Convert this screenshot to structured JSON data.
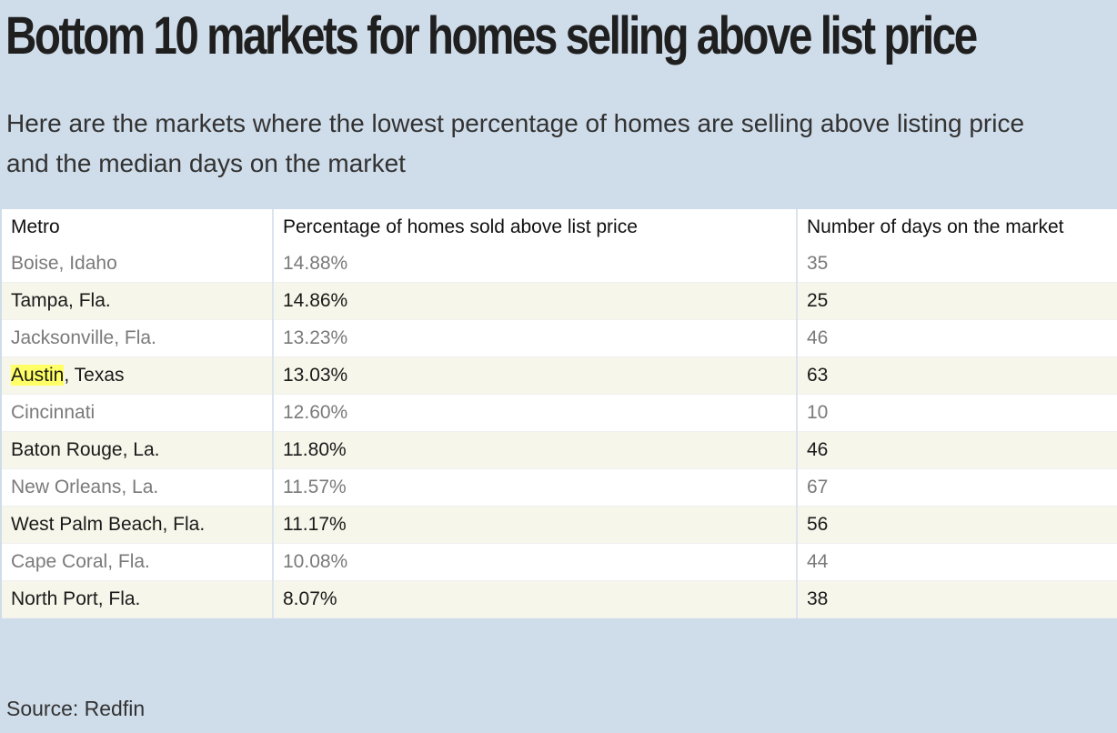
{
  "chart_data": {
    "type": "table",
    "title": "Bottom 10 markets for homes selling above list price",
    "subtitle": "Here are the markets where the lowest percentage of homes are selling above listing price and the median days on the market",
    "columns": [
      "Metro",
      "Percentage of homes sold above list price",
      "Number of days on the market"
    ],
    "rows": [
      {
        "metro": "Boise, Idaho",
        "pct": "14.88%",
        "days": "35"
      },
      {
        "metro": "Tampa, Fla.",
        "pct": "14.86%",
        "days": "25"
      },
      {
        "metro": "Jacksonville, Fla.",
        "pct": "13.23%",
        "days": "46"
      },
      {
        "metro_highlight": "Austin",
        "metro_rest": ", Texas",
        "pct": "13.03%",
        "days": "63"
      },
      {
        "metro": "Cincinnati",
        "pct": "12.60%",
        "days": "10"
      },
      {
        "metro": "Baton Rouge, La.",
        "pct": "11.80%",
        "days": "46"
      },
      {
        "metro": "New Orleans, La.",
        "pct": "11.57%",
        "days": "67"
      },
      {
        "metro": "West Palm Beach, Fla.",
        "pct": "11.17%",
        "days": "56"
      },
      {
        "metro": "Cape Coral, Fla.",
        "pct": "10.08%",
        "days": "44"
      },
      {
        "metro": "North Port, Fla.",
        "pct": "8.07%",
        "days": "38"
      }
    ],
    "source": "Source: Redfin"
  },
  "colors": {
    "background": "#cfdce9",
    "row_alt": "#f7f6ea",
    "highlight": "#ffff66"
  }
}
